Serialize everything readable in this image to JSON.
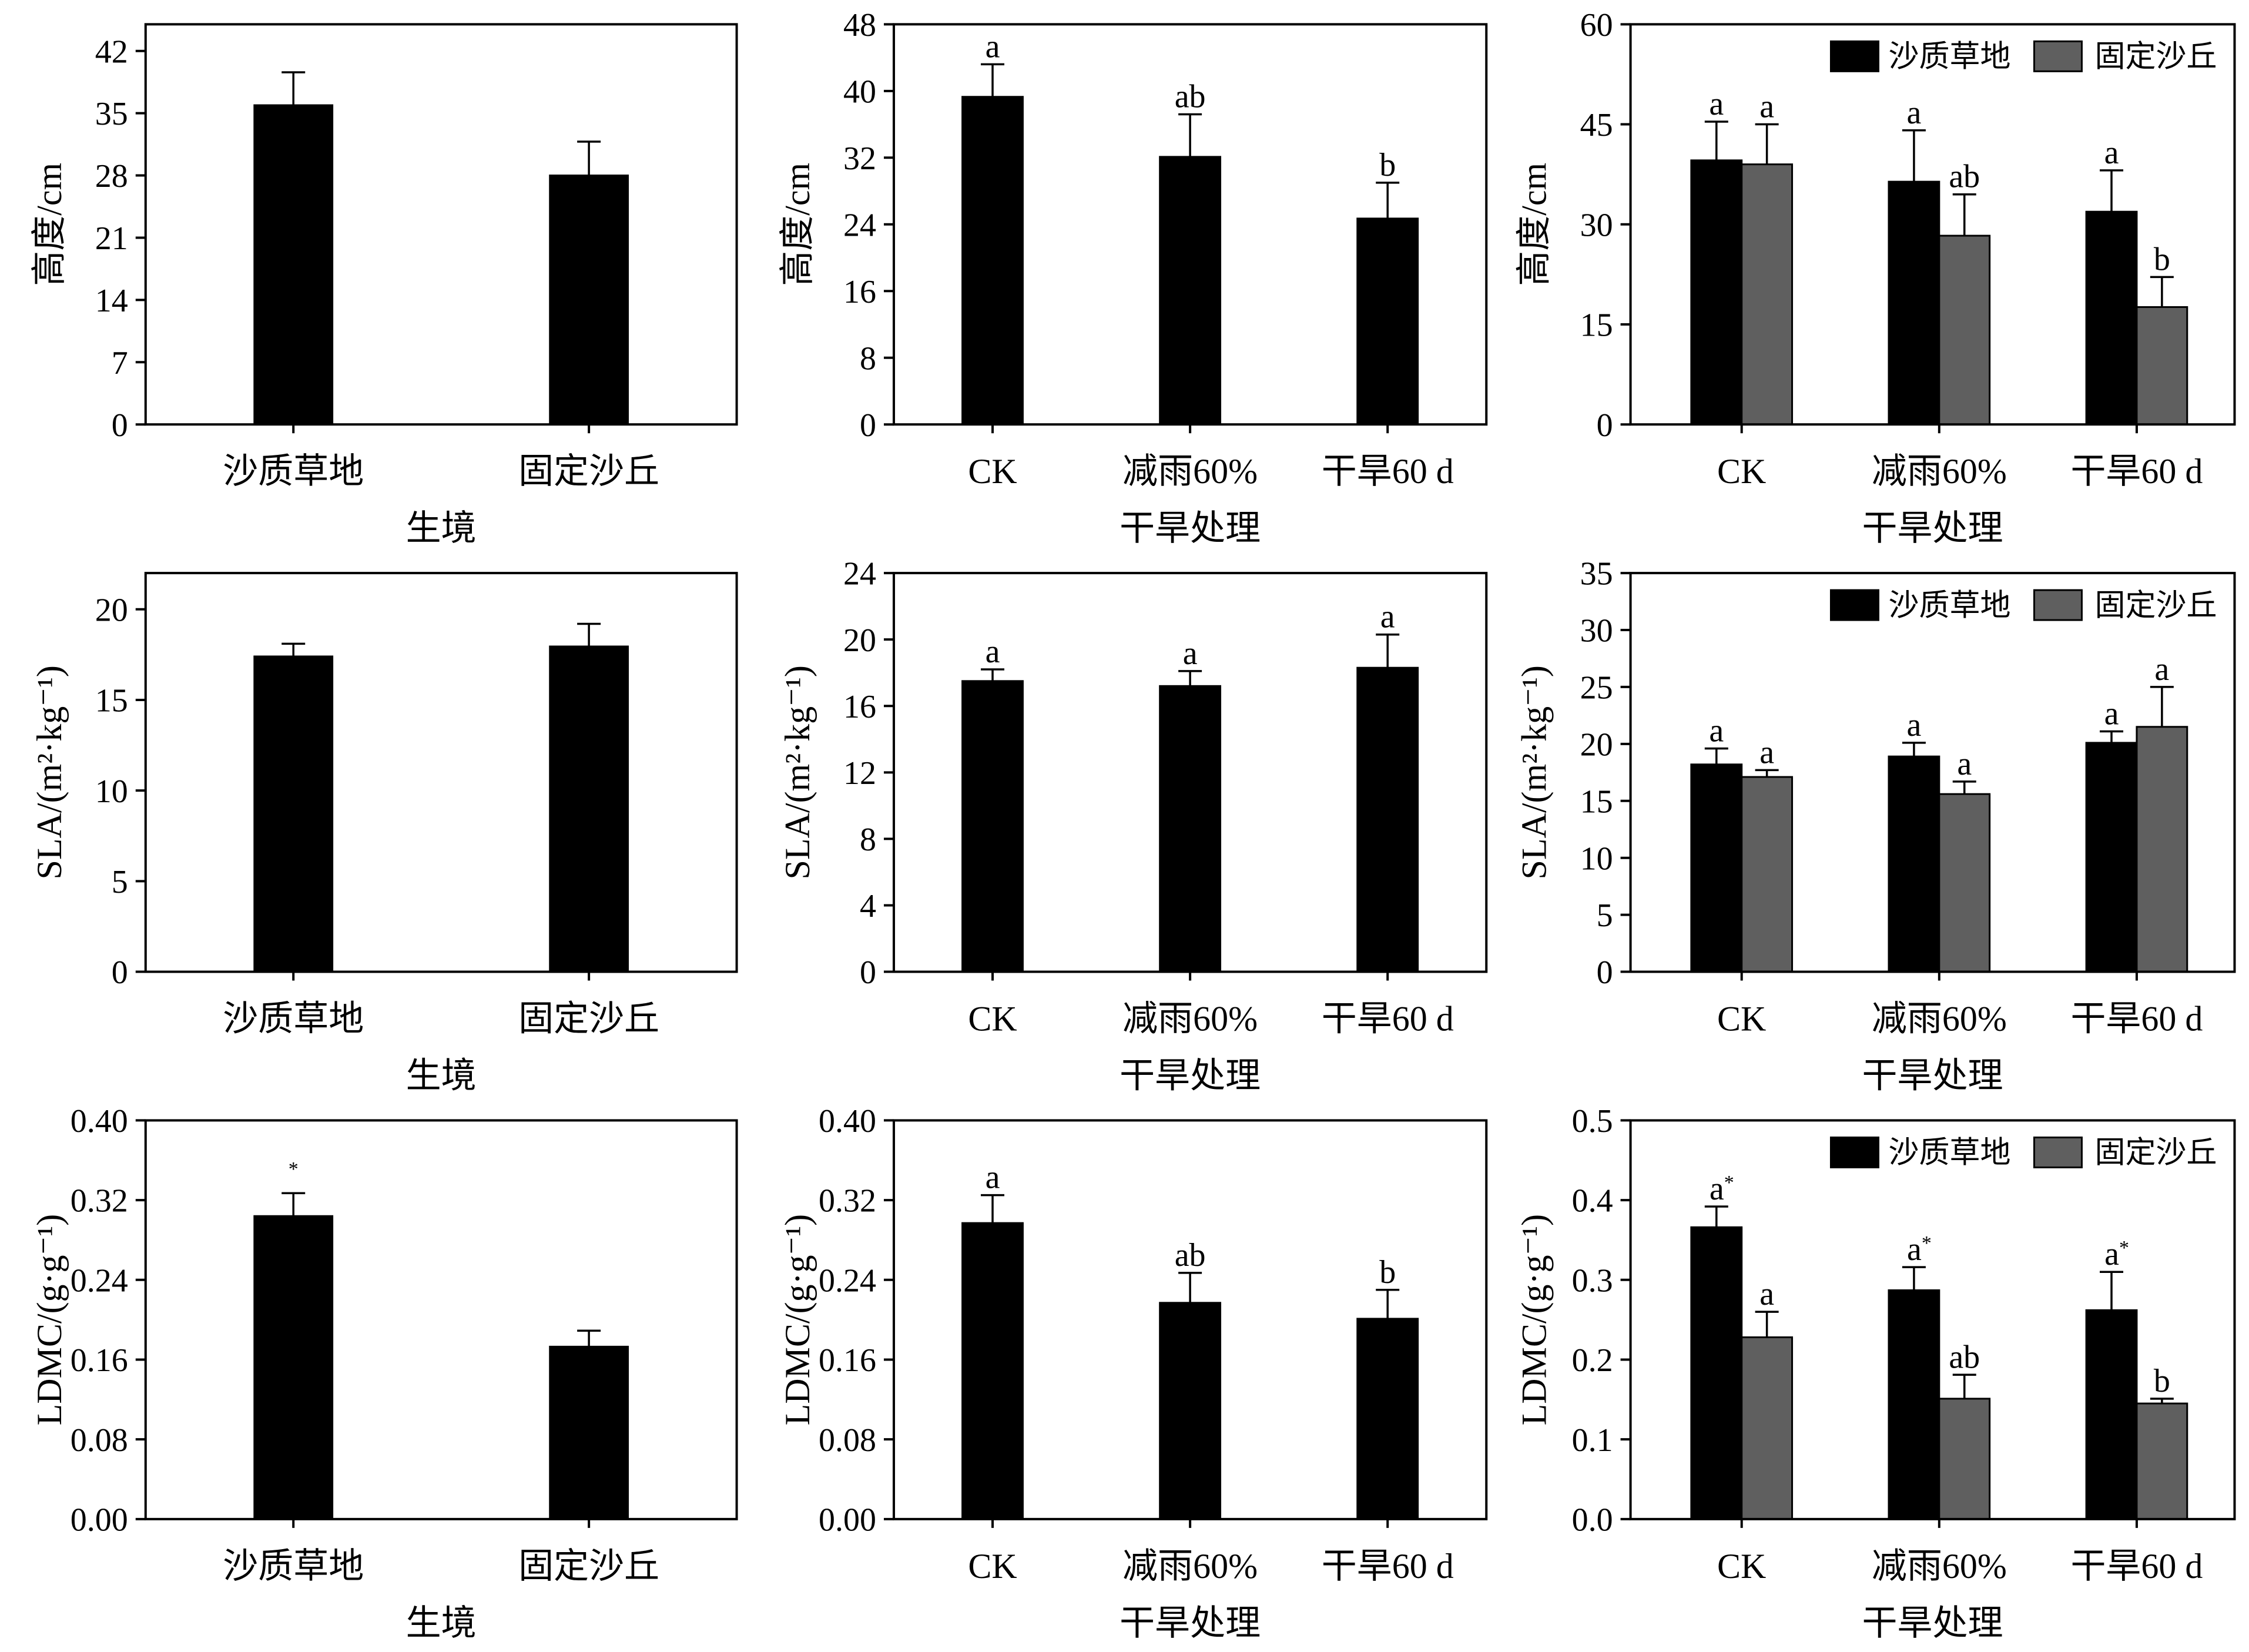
{
  "chart_data": [
    {
      "type": "bar",
      "categories": [
        "沙质草地",
        "固定沙丘"
      ],
      "series": [
        {
          "values": [
            35.9,
            28.0
          ],
          "errors": [
            3.7,
            3.8
          ],
          "color": "#000000"
        }
      ],
      "xlabel": "生境",
      "ylabel": "高度/cm",
      "ylim": [
        0,
        45
      ],
      "yticks": [
        "0",
        "7",
        "14",
        "21",
        "28",
        "35",
        "42"
      ],
      "grid": false
    },
    {
      "type": "bar",
      "categories": [
        "CK",
        "减雨60%",
        "干旱60 d"
      ],
      "series": [
        {
          "values": [
            39.3,
            32.1,
            24.7
          ],
          "errors": [
            3.9,
            5.1,
            4.3
          ],
          "labels": [
            "a",
            "ab",
            "b"
          ],
          "color": "#000000"
        }
      ],
      "xlabel": "干旱处理",
      "ylabel": "高度/cm",
      "ylim": [
        0,
        48
      ],
      "yticks": [
        "0",
        "8",
        "16",
        "24",
        "32",
        "40",
        "48"
      ],
      "grid": false
    },
    {
      "type": "bar",
      "categories": [
        "CK",
        "减雨60%",
        "干旱60 d"
      ],
      "series": [
        {
          "name": "沙质草地",
          "values": [
            39.6,
            36.4,
            31.9
          ],
          "errors": [
            5.8,
            7.7,
            6.2
          ],
          "labels": [
            "a",
            "a",
            "a"
          ],
          "color": "#000000"
        },
        {
          "name": "固定沙丘",
          "values": [
            39.0,
            28.3,
            17.6
          ],
          "errors": [
            6.0,
            6.2,
            4.5
          ],
          "labels": [
            "a",
            "ab",
            "b"
          ],
          "color": "#5f5f5f"
        }
      ],
      "xlabel": "干旱处理",
      "ylabel": "高度/cm",
      "ylim": [
        0,
        60
      ],
      "yticks": [
        "0",
        "15",
        "30",
        "45",
        "60"
      ],
      "legend": "top-right",
      "grid": false
    },
    {
      "type": "bar",
      "categories": [
        "沙质草地",
        "固定沙丘"
      ],
      "series": [
        {
          "values": [
            17.4,
            17.95
          ],
          "errors": [
            0.7,
            1.25
          ],
          "color": "#000000"
        }
      ],
      "xlabel": "生境",
      "ylabel": "SLA/(m²·kg⁻¹)",
      "ylim": [
        0,
        22
      ],
      "yticks": [
        "0",
        "5",
        "10",
        "15",
        "20"
      ],
      "grid": false
    },
    {
      "type": "bar",
      "categories": [
        "CK",
        "减雨60%",
        "干旱60 d"
      ],
      "series": [
        {
          "values": [
            17.5,
            17.2,
            18.3
          ],
          "errors": [
            0.7,
            0.9,
            2.0
          ],
          "labels": [
            "a",
            "a",
            "a"
          ],
          "color": "#000000"
        }
      ],
      "xlabel": "干旱处理",
      "ylabel": "SLA/(m²·kg⁻¹)",
      "ylim": [
        0,
        24
      ],
      "yticks": [
        "0",
        "4",
        "8",
        "12",
        "16",
        "20",
        "24"
      ],
      "grid": false
    },
    {
      "type": "bar",
      "categories": [
        "CK",
        "减雨60%",
        "干旱60 d"
      ],
      "series": [
        {
          "name": "沙质草地",
          "values": [
            18.2,
            18.9,
            20.1
          ],
          "errors": [
            1.4,
            1.2,
            1.0
          ],
          "labels": [
            "a",
            "a",
            "a"
          ],
          "color": "#000000"
        },
        {
          "name": "固定沙丘",
          "values": [
            17.1,
            15.6,
            21.5
          ],
          "errors": [
            0.6,
            1.1,
            3.5
          ],
          "labels": [
            "a",
            "a",
            "a"
          ],
          "color": "#5f5f5f"
        }
      ],
      "xlabel": "干旱处理",
      "ylabel": "SLA/(m²·kg⁻¹)",
      "ylim": [
        0,
        35
      ],
      "yticks": [
        "0",
        "5",
        "10",
        "15",
        "20",
        "25",
        "30",
        "35"
      ],
      "legend": "top-right",
      "grid": false
    },
    {
      "type": "bar",
      "categories": [
        "沙质草地",
        "固定沙丘"
      ],
      "series": [
        {
          "values": [
            0.304,
            0.173
          ],
          "errors": [
            0.023,
            0.016
          ],
          "labels": [
            "*",
            ""
          ],
          "color": "#000000"
        }
      ],
      "xlabel": "生境",
      "ylabel": "LDMC/(g·g⁻¹)",
      "ylim": [
        0,
        0.4
      ],
      "yticks": [
        "0.00",
        "0.08",
        "0.16",
        "0.24",
        "0.32",
        "0.40"
      ],
      "grid": false
    },
    {
      "type": "bar",
      "categories": [
        "CK",
        "减雨60%",
        "干旱60 d"
      ],
      "series": [
        {
          "values": [
            0.297,
            0.217,
            0.201
          ],
          "errors": [
            0.028,
            0.03,
            0.029
          ],
          "labels": [
            "a",
            "ab",
            "b"
          ],
          "color": "#000000"
        }
      ],
      "xlabel": "干旱处理",
      "ylabel": "LDMC/(g·g⁻¹)",
      "ylim": [
        0,
        0.4
      ],
      "yticks": [
        "0.00",
        "0.08",
        "0.16",
        "0.24",
        "0.32",
        "0.40"
      ],
      "grid": false
    },
    {
      "type": "bar",
      "categories": [
        "CK",
        "减雨60%",
        "干旱60 d"
      ],
      "series": [
        {
          "name": "沙质草地",
          "values": [
            0.366,
            0.287,
            0.262
          ],
          "errors": [
            0.026,
            0.029,
            0.048
          ],
          "labels": [
            "a*",
            "a*",
            "a*"
          ],
          "color": "#000000"
        },
        {
          "name": "固定沙丘",
          "values": [
            0.228,
            0.151,
            0.145
          ],
          "errors": [
            0.032,
            0.03,
            0.006
          ],
          "labels": [
            "a",
            "ab",
            "b"
          ],
          "color": "#5f5f5f"
        }
      ],
      "xlabel": "干旱处理",
      "ylabel": "LDMC/(g·g⁻¹)",
      "ylim": [
        0,
        0.5
      ],
      "yticks": [
        "0.0",
        "0.1",
        "0.2",
        "0.3",
        "0.4",
        "0.5"
      ],
      "legend": "top-right",
      "grid": false
    }
  ]
}
